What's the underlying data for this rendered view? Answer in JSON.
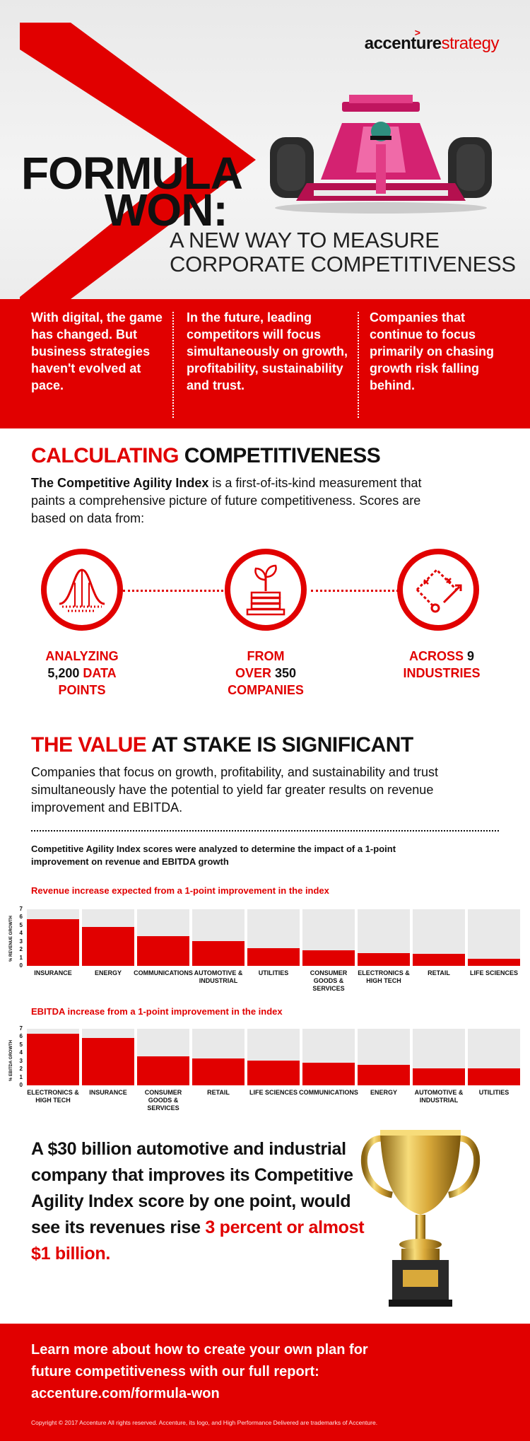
{
  "brand": {
    "name": "accenture",
    "suffix": "strategy"
  },
  "hero": {
    "title_line1": "FORMULA",
    "title_line2": "WON:",
    "subtitle_line1": "A NEW WAY TO MEASURE",
    "subtitle_line2": "CORPORATE COMPETITIVENESS",
    "car_icon": "formula-one-car"
  },
  "band": [
    "With digital, the game has changed. But business strategies haven't evolved at pace.",
    "In the future, leading competitors will focus simultaneously on growth, profitability, sustainability and trust.",
    "Companies that continue to focus primarily on chasing growth risk falling behind."
  ],
  "calculating": {
    "title_red": "CALCULATING",
    "title_black": " COMPETITIVENESS",
    "lead_bold": "The Competitive Agility Index",
    "lead_rest": " is a first-of-its-kind measurement that paints a comprehensive picture of future competitiveness. Scores are based on data from:",
    "stats": [
      {
        "icon": "bell-curve-icon",
        "l1_red": "ANALYZING",
        "l2_black": "5,200",
        "l2_red": " DATA",
        "l3_red": "POINTS"
      },
      {
        "icon": "plant-coins-icon",
        "l1_red": "FROM",
        "l2_red": "OVER",
        "l2_black": " 350",
        "l3_red": "COMPANIES"
      },
      {
        "icon": "strategy-play-icon",
        "l1_red": "ACROSS",
        "l1_black": " 9",
        "l2_red": "INDUSTRIES"
      }
    ]
  },
  "value": {
    "title_red": "THE VALUE",
    "title_black": " AT STAKE IS SIGNIFICANT",
    "text": "Companies that focus on growth, profitability, and sustainability and trust simultaneously have the potential to yield far greater results on revenue improvement and EBITDA.",
    "analyzed": "Competitive Agility Index scores were analyzed to determine the impact of a 1-point improvement on revenue and EBITDA growth"
  },
  "chart_data": [
    {
      "type": "bar",
      "title": "Revenue increase expected from a 1-point improvement in the index",
      "ylabel": "% REVENUE GROWTH",
      "ylim": [
        0,
        7
      ],
      "yticks": [
        "0",
        "1",
        "2",
        "3",
        "4",
        "5",
        "6",
        "7"
      ],
      "categories": [
        "INSURANCE",
        "ENERGY",
        "COMMUNICATIONS",
        "AUTOMOTIVE & INDUSTRIAL",
        "UTILITIES",
        "CONSUMER GOODS & SERVICES",
        "ELECTRONICS & HIGH TECH",
        "RETAIL",
        "LIFE SCIENCES"
      ],
      "values": [
        5.8,
        4.8,
        3.7,
        3.1,
        2.2,
        1.9,
        1.6,
        1.5,
        0.9
      ],
      "color": "#e10000"
    },
    {
      "type": "bar",
      "title": "EBITDA increase from a 1-point improvement in the index",
      "ylabel": "% EBITDA GROWTH",
      "ylim": [
        0,
        7
      ],
      "yticks": [
        "0",
        "1",
        "2",
        "3",
        "4",
        "5",
        "6",
        "7"
      ],
      "categories": [
        "ELECTRONICS & HIGH TECH",
        "INSURANCE",
        "CONSUMER GOODS & SERVICES",
        "RETAIL",
        "LIFE SCIENCES",
        "COMMUNICATIONS",
        "ENERGY",
        "AUTOMOTIVE & INDUSTRIAL",
        "UTILITIES"
      ],
      "values": [
        6.4,
        5.9,
        3.6,
        3.3,
        3.1,
        2.8,
        2.5,
        2.1,
        2.1
      ],
      "color": "#e10000"
    }
  ],
  "trophy": {
    "text_black": "A $30 billion automotive and industrial company that improves its Competitive Agility Index score by one point, would see its revenues rise ",
    "text_red": "3 percent or almost $1 billion.",
    "icon": "trophy-icon"
  },
  "footer": {
    "cta_line1": "Learn more about how to create your own plan for",
    "cta_line2": "future competitiveness with our full report:",
    "cta_link": "accenture.com/formula-won",
    "copyright": "Copyright © 2017 Accenture All rights reserved. Accenture, its logo, and High Performance Delivered are trademarks of Accenture."
  }
}
